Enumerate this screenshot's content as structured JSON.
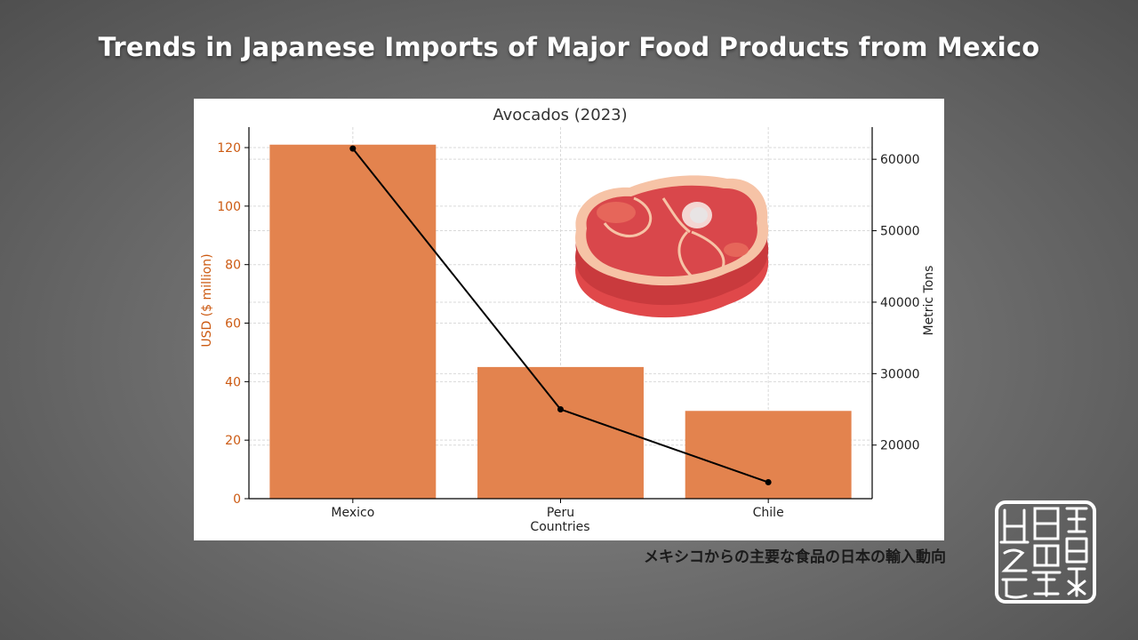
{
  "slide": {
    "title": "Trends in Japanese Imports of Major Food Products from Mexico",
    "caption": "メキシコからの主要な食品の日本の輸入動向"
  },
  "chart_data": {
    "type": "bar",
    "title": "Avocados (2023)",
    "categories": [
      "Mexico",
      "Peru",
      "Chile"
    ],
    "xlabel": "Countries",
    "ylabel": "USD ($ million)",
    "y2label": "Metric Tons",
    "ylim": [
      0,
      127
    ],
    "y2lim": [
      12500,
      64500
    ],
    "yticks": [
      0,
      20,
      40,
      60,
      80,
      100,
      120
    ],
    "y2ticks": [
      20000,
      30000,
      40000,
      50000,
      60000
    ],
    "grid": true,
    "series": [
      {
        "kind": "bar",
        "axis": "left",
        "values": [
          121,
          45,
          30
        ]
      },
      {
        "kind": "line",
        "axis": "right",
        "values": [
          61500,
          25000,
          14800
        ]
      }
    ],
    "colors": {
      "bar": "#e3834e",
      "line": "#000000",
      "left_axis_text": "#cc5a12",
      "grid": "#d9d9d9"
    },
    "illustration_icon": "meat-steak-icon"
  }
}
